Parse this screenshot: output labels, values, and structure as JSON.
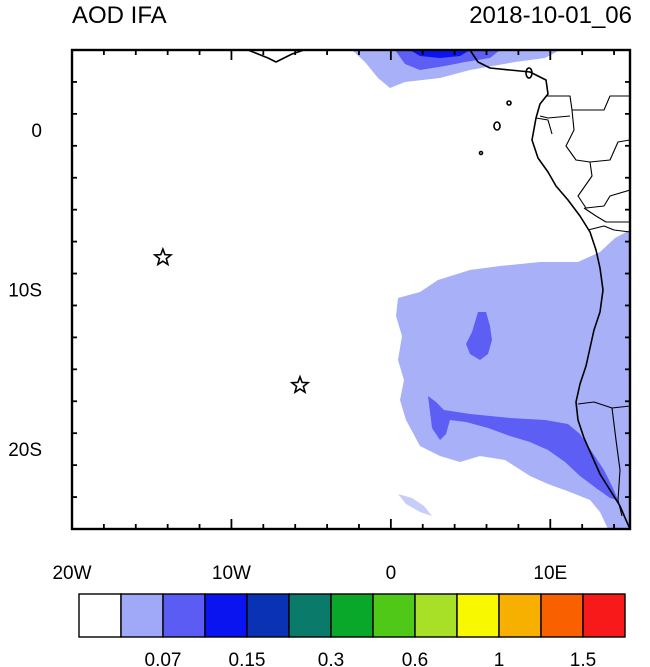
{
  "header": {
    "title": "AOD IFA",
    "date": "2018-10-01_06"
  },
  "map": {
    "lon_range": [
      -20,
      15
    ],
    "lat_range": [
      -25,
      5
    ],
    "x_tick_labels": [
      {
        "lon": -20,
        "label": "20W"
      },
      {
        "lon": -10,
        "label": "10W"
      },
      {
        "lon": 0,
        "label": "0"
      },
      {
        "lon": 10,
        "label": "10E"
      }
    ],
    "y_tick_labels": [
      {
        "lat": 0,
        "label": "0"
      },
      {
        "lat": -10,
        "label": "10S"
      },
      {
        "lat": -20,
        "label": "20S"
      }
    ],
    "markers": [
      {
        "name": "star-marker-north",
        "lon": -14.3,
        "lat": -8.0
      },
      {
        "name": "star-marker-south",
        "lon": -5.7,
        "lat": -16.0
      }
    ]
  },
  "colorbar": {
    "colors": [
      "#ffffff",
      "#a0a8f8",
      "#5a5cf4",
      "#0a14f0",
      "#0a32b4",
      "#0a7a6a",
      "#0aa82a",
      "#50c818",
      "#a8e028",
      "#f8f800",
      "#f8b000",
      "#f86000",
      "#f81a1a"
    ],
    "labels": [
      "0.07",
      "0.15",
      "0.3",
      "0.6",
      "1",
      "1.5"
    ]
  }
}
